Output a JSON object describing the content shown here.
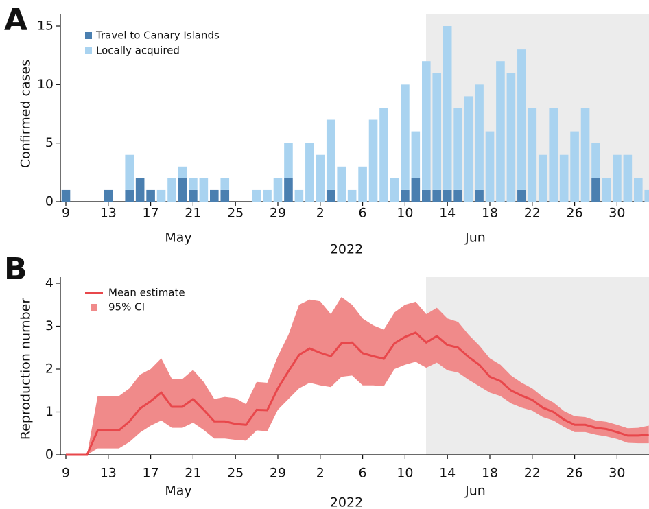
{
  "chart_data": [
    {
      "type": "bar",
      "stacked": true,
      "panel_label": "A",
      "categories": [
        "9",
        null,
        null,
        null,
        "13",
        null,
        null,
        null,
        "17",
        null,
        null,
        null,
        "21",
        null,
        null,
        null,
        "25",
        null,
        null,
        null,
        "29",
        null,
        null,
        null,
        "2",
        null,
        null,
        null,
        "6",
        null,
        null,
        null,
        "10",
        null,
        null,
        null,
        "14",
        null,
        null,
        null,
        "18",
        null,
        null,
        null,
        "22",
        null,
        null,
        null,
        "26",
        null,
        null,
        null,
        "30",
        null,
        null,
        null
      ],
      "month_labels": [
        "May",
        "Jun"
      ],
      "xlabel": "2022",
      "ylabel": "Confirmed cases",
      "series": [
        {
          "name": "Travel to Canary Islands",
          "color": "#4a7fb0",
          "values": [
            1,
            0,
            0,
            0,
            1,
            0,
            1,
            2,
            1,
            0,
            0,
            2,
            1,
            0,
            1,
            1,
            0,
            0,
            0,
            0,
            0,
            2,
            0,
            0,
            0,
            1,
            0,
            0,
            0,
            0,
            0,
            0,
            1,
            2,
            1,
            1,
            1,
            1,
            0,
            1,
            0,
            0,
            0,
            1,
            0,
            0,
            0,
            0,
            0,
            0,
            2,
            0,
            0,
            0,
            0,
            0
          ]
        },
        {
          "name": "Locally acquired",
          "color": "#a9d3f0",
          "values": [
            0,
            0,
            0,
            0,
            0,
            0,
            3,
            0,
            0,
            1,
            2,
            1,
            1,
            2,
            0,
            1,
            0,
            0,
            1,
            1,
            2,
            3,
            1,
            5,
            4,
            6,
            3,
            1,
            3,
            7,
            8,
            2,
            9,
            4,
            11,
            10,
            14,
            7,
            9,
            9,
            6,
            12,
            11,
            12,
            8,
            4,
            8,
            4,
            6,
            8,
            3,
            2,
            4,
            4,
            2,
            1
          ]
        }
      ],
      "ylim": [
        0,
        15
      ],
      "yticks": [
        0,
        5,
        10,
        15
      ],
      "legend": "upper left"
    },
    {
      "type": "line",
      "panel_label": "B",
      "categories": [
        "9",
        null,
        null,
        null,
        "13",
        null,
        null,
        null,
        "17",
        null,
        null,
        null,
        "21",
        null,
        null,
        null,
        "25",
        null,
        null,
        null,
        "29",
        null,
        null,
        null,
        "2",
        null,
        null,
        null,
        "6",
        null,
        null,
        null,
        "10",
        null,
        null,
        null,
        "14",
        null,
        null,
        null,
        "18",
        null,
        null,
        null,
        "22",
        null,
        null,
        null,
        "26",
        null,
        null,
        null,
        "30",
        null,
        null,
        null
      ],
      "month_labels": [
        "May",
        "Jun"
      ],
      "xlabel": "2022",
      "ylabel": "Reproduction number",
      "series": [
        {
          "name": "Mean estimate",
          "color": "#e8474b",
          "values": [
            0,
            0,
            0,
            0.57,
            0.57,
            0.57,
            0.78,
            1.08,
            1.25,
            1.45,
            1.12,
            1.12,
            1.3,
            1.05,
            0.78,
            0.78,
            0.72,
            0.7,
            1.05,
            1.04,
            1.55,
            1.95,
            2.33,
            2.48,
            2.38,
            2.3,
            2.6,
            2.62,
            2.37,
            2.3,
            2.24,
            2.6,
            2.75,
            2.85,
            2.62,
            2.77,
            2.56,
            2.5,
            2.28,
            2.1,
            1.82,
            1.72,
            1.5,
            1.38,
            1.28,
            1.1,
            1.0,
            0.82,
            0.7,
            0.7,
            0.63,
            0.6,
            0.53,
            0.45,
            0.45,
            0.47
          ]
        },
        {
          "name": "95% CI",
          "color": "#f08a8a",
          "lower": [
            0,
            0,
            0,
            0.15,
            0.15,
            0.15,
            0.3,
            0.52,
            0.68,
            0.8,
            0.63,
            0.63,
            0.75,
            0.58,
            0.38,
            0.38,
            0.35,
            0.33,
            0.57,
            0.55,
            1.05,
            1.3,
            1.55,
            1.68,
            1.62,
            1.58,
            1.82,
            1.85,
            1.62,
            1.62,
            1.6,
            2.0,
            2.1,
            2.17,
            2.03,
            2.15,
            1.97,
            1.92,
            1.75,
            1.6,
            1.45,
            1.37,
            1.2,
            1.1,
            1.03,
            0.88,
            0.8,
            0.65,
            0.53,
            0.53,
            0.47,
            0.43,
            0.37,
            0.28,
            0.27,
            0.27
          ],
          "upper": [
            0,
            0,
            0,
            1.37,
            1.37,
            1.37,
            1.55,
            1.87,
            2.0,
            2.25,
            1.77,
            1.77,
            1.98,
            1.7,
            1.3,
            1.35,
            1.32,
            1.18,
            1.7,
            1.68,
            2.3,
            2.8,
            3.5,
            3.62,
            3.58,
            3.28,
            3.68,
            3.5,
            3.18,
            3.02,
            2.92,
            3.32,
            3.5,
            3.57,
            3.28,
            3.43,
            3.18,
            3.1,
            2.8,
            2.55,
            2.25,
            2.1,
            1.85,
            1.68,
            1.55,
            1.35,
            1.22,
            1.02,
            0.9,
            0.88,
            0.8,
            0.77,
            0.7,
            0.62,
            0.63,
            0.68
          ]
        }
      ],
      "ylim": [
        0,
        4
      ],
      "yticks": [
        0,
        1,
        2,
        3,
        4
      ],
      "legend": "upper left"
    }
  ]
}
